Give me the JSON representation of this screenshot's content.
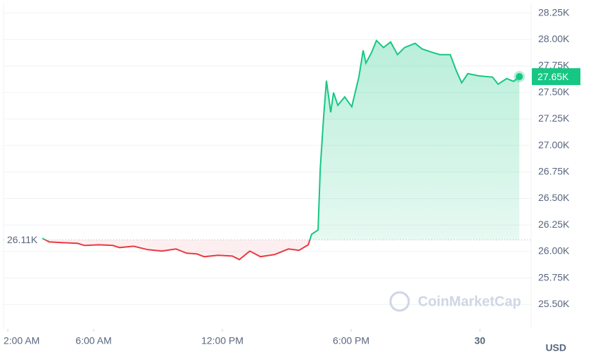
{
  "chart_data": {
    "type": "line",
    "x": [
      3.61,
      3.93,
      4.59,
      5.25,
      5.57,
      6.23,
      6.89,
      7.21,
      7.87,
      8.52,
      9.18,
      9.84,
      10.33,
      10.82,
      11.15,
      11.8,
      12.46,
      12.79,
      13.28,
      13.77,
      14.43,
      15.08,
      15.57,
      16.0,
      16.16,
      16.46,
      16.56,
      16.72,
      16.85,
      17.05,
      17.18,
      17.38,
      17.7,
      18.03,
      18.36,
      18.56,
      18.69,
      18.95,
      19.18,
      19.51,
      19.84,
      20.16,
      20.49,
      20.98,
      21.31,
      21.8,
      22.13,
      22.62,
      22.89,
      23.15,
      23.44,
      23.93,
      24.59,
      24.85,
      25.25,
      25.57,
      25.84
    ],
    "values": [
      26125,
      26090,
      26083,
      26077,
      26057,
      26063,
      26057,
      26037,
      26050,
      26017,
      26004,
      26024,
      25984,
      25977,
      25951,
      25964,
      25957,
      25924,
      26004,
      25951,
      25971,
      26024,
      26011,
      26063,
      26163,
      26203,
      26781,
      27280,
      27612,
      27313,
      27499,
      27380,
      27459,
      27366,
      27646,
      27898,
      27778,
      27878,
      27991,
      27924,
      27977,
      27858,
      27924,
      27964,
      27911,
      27878,
      27858,
      27858,
      27712,
      27592,
      27678,
      27658,
      27645,
      27579,
      27632,
      27605,
      27650
    ],
    "up_color": "#16c784",
    "down_color": "#ea3943",
    "xlim": [
      1.8,
      26.39
    ],
    "xticks": [
      {
        "value": 2,
        "label": "2:00 AM"
      },
      {
        "value": 6,
        "label": "6:00 AM"
      },
      {
        "value": 12,
        "label": "12:00 PM"
      },
      {
        "value": 18,
        "label": "6:00 PM"
      },
      {
        "value": 24,
        "label": "30"
      }
    ],
    "ylim": [
      25270,
      28340
    ],
    "yticks": [
      {
        "value": 25500,
        "label": "25.50K"
      },
      {
        "value": 25750,
        "label": "25.75K"
      },
      {
        "value": 26000,
        "label": "26.00K"
      },
      {
        "value": 26250,
        "label": "26.25K"
      },
      {
        "value": 26500,
        "label": "26.50K"
      },
      {
        "value": 26750,
        "label": "26.75K"
      },
      {
        "value": 27000,
        "label": "27.00K"
      },
      {
        "value": 27250,
        "label": "27.25K"
      },
      {
        "value": 27500,
        "label": "27.50K"
      },
      {
        "value": 27750,
        "label": "27.75K"
      },
      {
        "value": 28000,
        "label": "28.00K"
      },
      {
        "value": 28250,
        "label": "28.25K"
      }
    ],
    "grid": true,
    "reference": {
      "value": 26110,
      "label": "26.11K"
    },
    "last_label": "27.65K",
    "currency": "USD",
    "watermark": "CoinMarketCap"
  }
}
